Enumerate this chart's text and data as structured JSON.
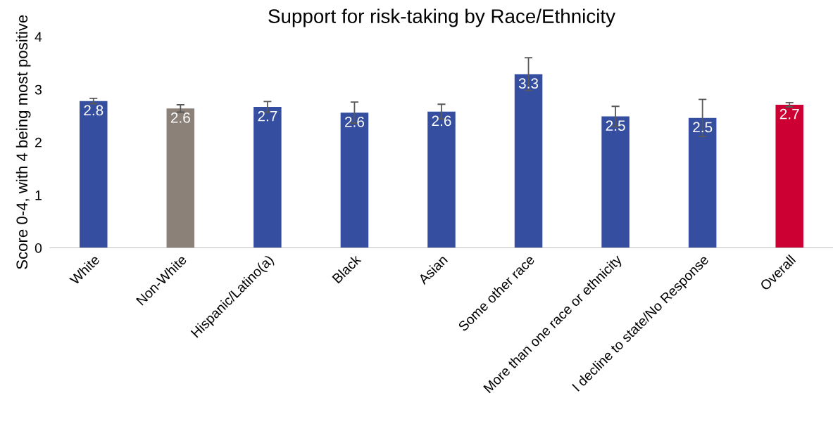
{
  "chart_data": {
    "type": "bar",
    "title": "Support for risk-taking by Race/Ethnicity",
    "ylabel": "Score 0-4, with 4 being most positive",
    "categories": [
      "White",
      "Non-White",
      "Hispanic/Latino(a)",
      "Black",
      "Asian",
      "Some other race",
      "More than one race or ethnicity",
      "I decline to state/No Response",
      "Overall"
    ],
    "values": [
      2.78,
      2.64,
      2.67,
      2.56,
      2.58,
      3.29,
      2.49,
      2.46,
      2.71
    ],
    "errors": [
      0.05,
      0.07,
      0.1,
      0.2,
      0.14,
      0.31,
      0.19,
      0.35,
      0.04
    ],
    "colors": [
      "#354ea0",
      "#8b8178",
      "#354ea0",
      "#354ea0",
      "#354ea0",
      "#354ea0",
      "#354ea0",
      "#354ea0",
      "#cc0033"
    ],
    "value_labels": [
      "2.8",
      "2.6",
      "2.7",
      "2.6",
      "2.6",
      "3.3",
      "2.5",
      "2.5",
      "2.7"
    ],
    "ylim": [
      0,
      4
    ],
    "yticks": [
      0,
      1,
      2,
      3,
      4
    ],
    "grid": false,
    "legend": false
  }
}
